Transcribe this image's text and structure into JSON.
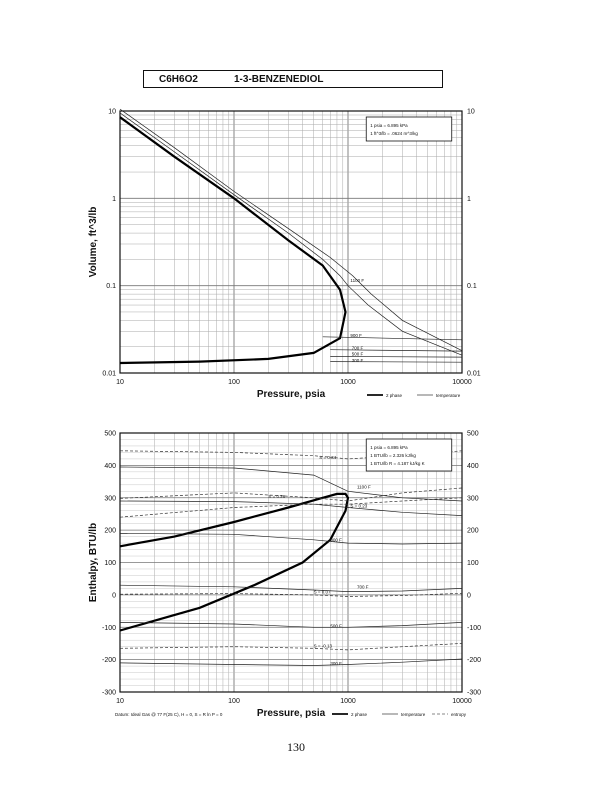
{
  "header": {
    "formula": "C6H6O2",
    "name": "1-3-BENZENEDIOL"
  },
  "page_number": "130",
  "chart_data": [
    {
      "type": "line",
      "id": "volume",
      "xscale": "log",
      "yscale": "log",
      "xlim": [
        10,
        10000
      ],
      "ylim": [
        0.01,
        10
      ],
      "xlabel": "Pressure,  psia",
      "ylabel": "Volume,  ft^3/lb",
      "x_ticks": [
        "10",
        "100",
        "1000",
        "10000"
      ],
      "y_ticks": [
        "0.01",
        "0.1",
        "1",
        "10"
      ],
      "grid": true,
      "note_lines": [
        "1 psia  =  6.895 kPa",
        "1 ft^3/lb  =  .0624 m^3/kg"
      ],
      "legend": [
        "2 phase",
        "temperature"
      ],
      "series": [
        {
          "kind": "2 phase",
          "name": "",
          "points": [
            [
              10,
              8.5
            ],
            [
              30,
              3.0
            ],
            [
              100,
              1.0
            ],
            [
              300,
              0.33
            ],
            [
              600,
              0.17
            ],
            [
              850,
              0.09
            ],
            [
              950,
              0.05
            ],
            [
              850,
              0.025
            ],
            [
              500,
              0.017
            ],
            [
              200,
              0.0145
            ],
            [
              50,
              0.0135
            ],
            [
              10,
              0.013
            ]
          ]
        },
        {
          "kind": "temperature",
          "name": "",
          "points": [
            [
              10,
              9.5
            ],
            [
              30,
              3.4
            ],
            [
              100,
              1.1
            ],
            [
              300,
              0.4
            ],
            [
              600,
              0.2
            ],
            [
              850,
              0.13
            ],
            [
              1000,
              0.1
            ],
            [
              1500,
              0.06
            ],
            [
              3000,
              0.03
            ],
            [
              10000,
              0.016
            ]
          ]
        },
        {
          "kind": "temperature",
          "name": "",
          "points": [
            [
              10,
              10.5
            ],
            [
              30,
              3.8
            ],
            [
              100,
              1.2
            ],
            [
              300,
              0.45
            ],
            [
              700,
              0.21
            ],
            [
              1100,
              0.13
            ],
            [
              1600,
              0.08
            ],
            [
              3000,
              0.04
            ],
            [
              10000,
              0.018
            ]
          ]
        },
        {
          "kind": "temperature",
          "name": "",
          "points": [
            [
              600,
              0.026
            ],
            [
              10000,
              0.024
            ]
          ]
        },
        {
          "kind": "temperature",
          "name": "",
          "points": [
            [
              700,
              0.0185
            ],
            [
              10000,
              0.0178
            ]
          ]
        },
        {
          "kind": "temperature",
          "name": "",
          "points": [
            [
              700,
              0.0155
            ],
            [
              10000,
              0.0152
            ]
          ]
        },
        {
          "kind": "temperature",
          "name": "",
          "points": [
            [
              700,
              0.0135
            ],
            [
              10000,
              0.0133
            ]
          ]
        }
      ],
      "temperature_labels": [
        {
          "text": "1100 F",
          "x": 1050,
          "y": 0.11
        },
        {
          "text": "900 F",
          "x": 1050,
          "y": 0.026
        },
        {
          "text": "700 F",
          "x": 1080,
          "y": 0.0185
        },
        {
          "text": "500 F",
          "x": 1080,
          "y": 0.0158
        },
        {
          "text": "300 F",
          "x": 1080,
          "y": 0.0133
        }
      ]
    },
    {
      "type": "line",
      "id": "enthalpy",
      "xscale": "log",
      "yscale": "linear",
      "xlim": [
        10,
        10000
      ],
      "ylim": [
        -300,
        500
      ],
      "xlabel": "Pressure,  psia",
      "ylabel": "Enthalpy,  BTU/lb",
      "x_ticks": [
        "10",
        "100",
        "1000",
        "10000"
      ],
      "y_ticks": [
        "-300",
        "-200",
        "-100",
        "0",
        "100",
        "200",
        "300",
        "400",
        "500"
      ],
      "grid": true,
      "note_lines": [
        "1 psia  =  6.895 kPa",
        "1 BTU/lb  =  2.326 kJ/kg",
        "1 BTU/lb R  =  4.187 kJ/kg K"
      ],
      "footer_note": "Datum: Ideal Gas @ 77 F(25 C), H = 0,  S = R ln P = 0",
      "legend": [
        "2 phase",
        "temperature",
        "entropy"
      ],
      "series": [
        {
          "kind": "2 phase",
          "name": "",
          "points": [
            [
              10,
              150
            ],
            [
              30,
              180
            ],
            [
              100,
              225
            ],
            [
              300,
              270
            ],
            [
              600,
              300
            ],
            [
              800,
              312
            ],
            [
              950,
              312
            ],
            [
              1000,
              300
            ],
            [
              950,
              260
            ],
            [
              700,
              170
            ],
            [
              400,
              100
            ],
            [
              150,
              30
            ],
            [
              50,
              -40
            ],
            [
              10,
              -110
            ]
          ]
        },
        {
          "kind": "temperature",
          "name": "",
          "points": [
            [
              10,
              395
            ],
            [
              100,
              392
            ],
            [
              500,
              370
            ],
            [
              1000,
              320
            ],
            [
              3000,
              300
            ],
            [
              10000,
              290
            ]
          ]
        },
        {
          "kind": "temperature",
          "name": "",
          "points": [
            [
              10,
              290
            ],
            [
              100,
              288
            ],
            [
              500,
              280
            ],
            [
              1000,
              270
            ],
            [
              3000,
              255
            ],
            [
              10000,
              245
            ]
          ]
        },
        {
          "kind": "temperature",
          "name": "",
          "points": [
            [
              10,
              190
            ],
            [
              100,
              187
            ],
            [
              500,
              170
            ],
            [
              1000,
              160
            ],
            [
              3000,
              157
            ],
            [
              10000,
              160
            ]
          ]
        },
        {
          "kind": "temperature",
          "name": "",
          "points": [
            [
              10,
              30
            ],
            [
              100,
              25
            ],
            [
              500,
              15
            ],
            [
              1000,
              10
            ],
            [
              3000,
              12
            ],
            [
              10000,
              20
            ]
          ]
        },
        {
          "kind": "temperature",
          "name": "",
          "points": [
            [
              10,
              -85
            ],
            [
              100,
              -90
            ],
            [
              500,
              -100
            ],
            [
              1000,
              -100
            ],
            [
              3000,
              -95
            ],
            [
              10000,
              -85
            ]
          ]
        },
        {
          "kind": "temperature",
          "name": "",
          "points": [
            [
              10,
              -210
            ],
            [
              100,
              -215
            ],
            [
              500,
              -218
            ],
            [
              1000,
              -215
            ],
            [
              3000,
              -208
            ],
            [
              10000,
              -198
            ]
          ]
        },
        {
          "kind": "entropy",
          "name": "",
          "points": [
            [
              10,
              445
            ],
            [
              100,
              440
            ],
            [
              500,
              430
            ],
            [
              1000,
              420
            ],
            [
              3000,
              430
            ],
            [
              10000,
              445
            ]
          ]
        },
        {
          "kind": "entropy",
          "name": "",
          "points": [
            [
              10,
              298
            ],
            [
              100,
              315
            ],
            [
              500,
              300
            ],
            [
              1000,
              290
            ],
            [
              3000,
              315
            ],
            [
              10000,
              330
            ]
          ]
        },
        {
          "kind": "entropy",
          "name": "",
          "points": [
            [
              10,
              240
            ],
            [
              100,
              270
            ],
            [
              500,
              280
            ],
            [
              1000,
              280
            ],
            [
              3000,
              290
            ],
            [
              10000,
              300
            ]
          ]
        },
        {
          "kind": "entropy",
          "name": "",
          "points": [
            [
              10,
              2
            ],
            [
              100,
              4
            ],
            [
              500,
              0
            ],
            [
              1000,
              -5
            ],
            [
              3000,
              -2
            ],
            [
              10000,
              5
            ]
          ]
        },
        {
          "kind": "entropy",
          "name": "",
          "points": [
            [
              10,
              -165
            ],
            [
              100,
              -160
            ],
            [
              500,
              -165
            ],
            [
              1000,
              -170
            ],
            [
              3000,
              -160
            ],
            [
              10000,
              -150
            ]
          ]
        }
      ],
      "annotations": [
        {
          "text": "S = 0.34",
          "x": 560,
          "y": 420
        },
        {
          "text": "S = 0.26",
          "x": 200,
          "y": 300
        },
        {
          "text": "S = 0.23",
          "x": 1050,
          "y": 270
        },
        {
          "text": "S = 0.07",
          "x": 500,
          "y": 5
        },
        {
          "text": "S = -0.13",
          "x": 500,
          "y": -163
        }
      ],
      "temperature_labels": [
        {
          "text": "1100 F",
          "x": 1200,
          "y": 328
        },
        {
          "text": "900 F",
          "x": 700,
          "y": 165
        },
        {
          "text": "700 F",
          "x": 1200,
          "y": 20
        },
        {
          "text": "500 F",
          "x": 700,
          "y": -100
        },
        {
          "text": "300 F",
          "x": 700,
          "y": -217
        }
      ]
    }
  ]
}
